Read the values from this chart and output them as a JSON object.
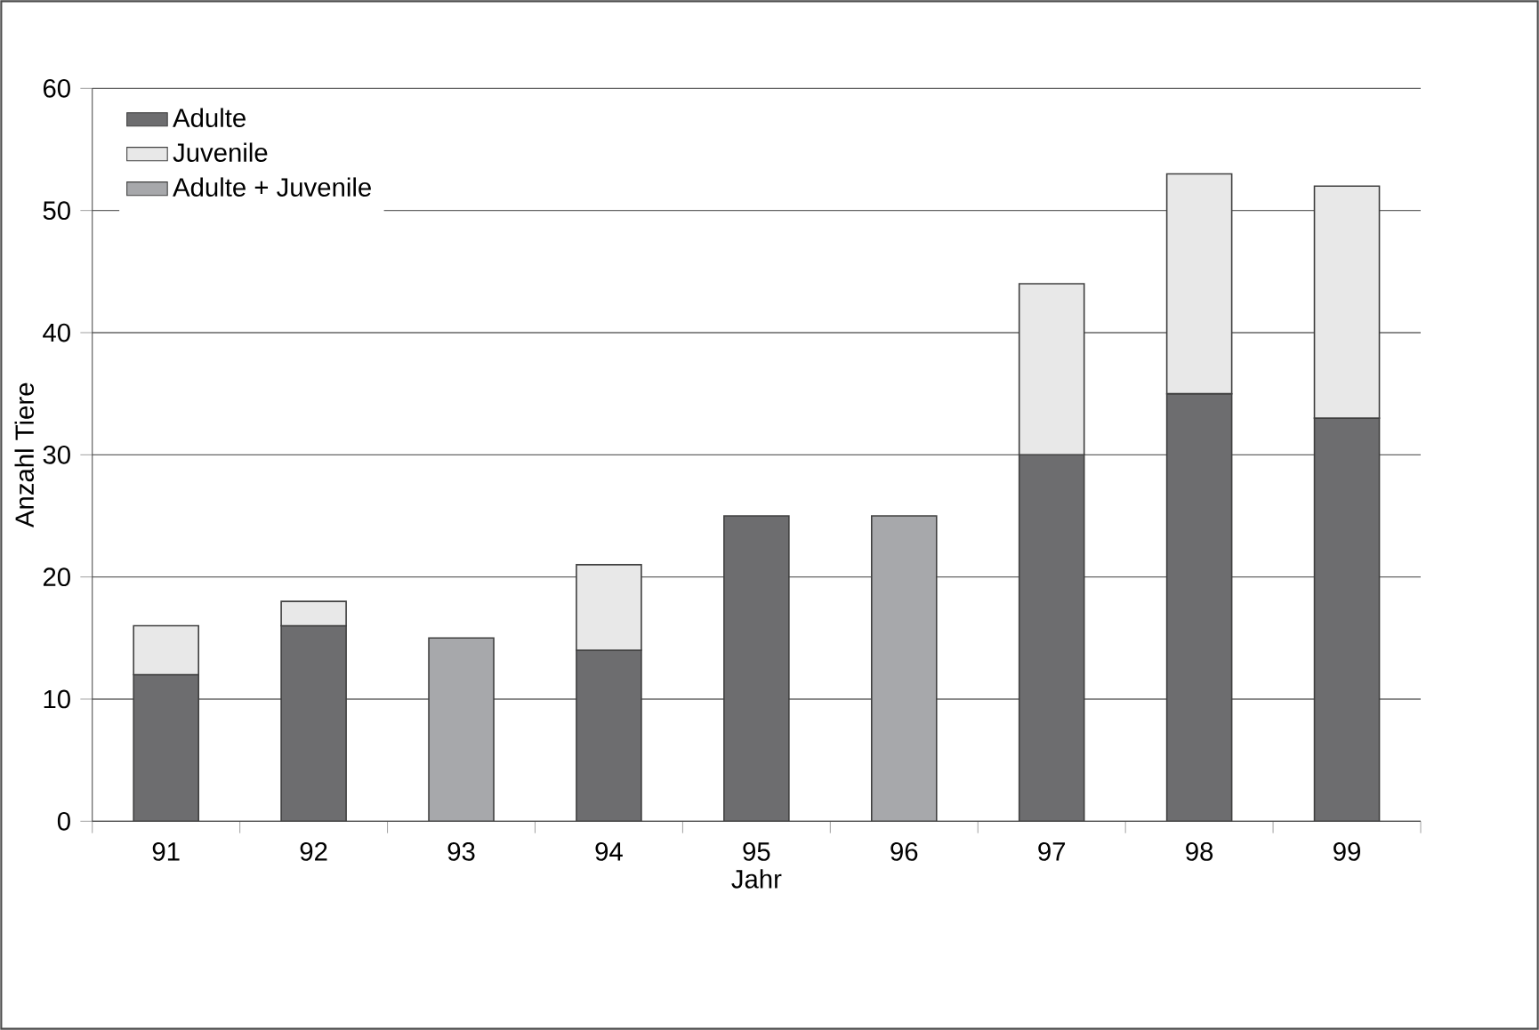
{
  "chart_data": {
    "type": "bar",
    "stacked": true,
    "xlabel": "Jahr",
    "ylabel": "Anzahl Tiere",
    "categories": [
      "91",
      "92",
      "93",
      "94",
      "95",
      "96",
      "97",
      "98",
      "99"
    ],
    "series": [
      {
        "name": "Adulte",
        "color": "#6d6d6f",
        "values": [
          12,
          16,
          null,
          14,
          25,
          null,
          30,
          35,
          33
        ]
      },
      {
        "name": "Juvenile",
        "color": "#e8e8e8",
        "values": [
          4,
          2,
          null,
          7,
          null,
          null,
          14,
          18,
          19
        ]
      },
      {
        "name": "Adulte + Juvenile",
        "color": "#a7a8ab",
        "values": [
          null,
          null,
          15,
          null,
          null,
          25,
          null,
          null,
          null
        ]
      }
    ],
    "ylim": [
      0,
      60
    ],
    "yticks": [
      0,
      10,
      20,
      30,
      40,
      50,
      60
    ],
    "grid": "y",
    "legend": "top left"
  }
}
